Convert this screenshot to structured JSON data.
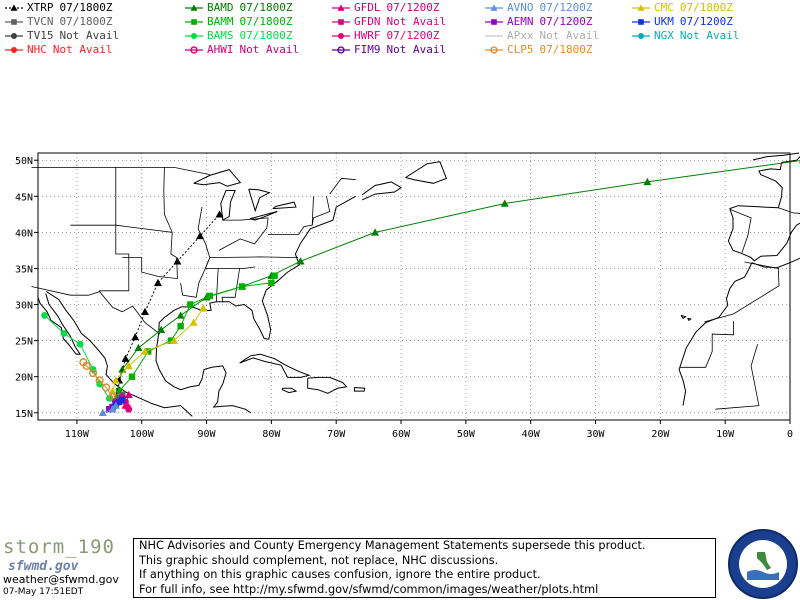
{
  "legend": [
    {
      "name": "XTRP",
      "status": "07/1800Z",
      "color": "#000000",
      "marker": "tri",
      "dash": true
    },
    {
      "name": "BAMD",
      "status": "07/1800Z",
      "color": "#008000",
      "marker": "tri"
    },
    {
      "name": "GFDL",
      "status": "07/1200Z",
      "color": "#cc0077",
      "marker": "tri"
    },
    {
      "name": "AVNO",
      "status": "07/1200Z",
      "color": "#5a8fe0",
      "marker": "tri"
    },
    {
      "name": "CMC",
      "status": "07/1800Z",
      "color": "#d4c000",
      "marker": "tri"
    },
    {
      "name": "TVCN",
      "status": "07/1800Z",
      "color": "#606060",
      "marker": "sq"
    },
    {
      "name": "BAMM",
      "status": "07/1800Z",
      "color": "#00b000",
      "marker": "sq"
    },
    {
      "name": "GFDN",
      "status": "Not Avail",
      "color": "#e0007a",
      "marker": "sq"
    },
    {
      "name": "AEMN",
      "status": "07/1200Z",
      "color": "#9000c0",
      "marker": "sq"
    },
    {
      "name": "UKM",
      "status": "07/1200Z",
      "color": "#1030e0",
      "marker": "sq"
    },
    {
      "name": "TV15",
      "status": "Not Avail",
      "color": "#404040",
      "marker": "dot"
    },
    {
      "name": "BAMS",
      "status": "07/1800Z",
      "color": "#00dd44",
      "marker": "dot"
    },
    {
      "name": "HWRF",
      "status": "07/1200Z",
      "color": "#e0007a",
      "marker": "dot"
    },
    {
      "name": "APxx",
      "status": "Not Avail",
      "color": "#c8c8c8",
      "marker": "none"
    },
    {
      "name": "NGX",
      "status": "Not Avail",
      "color": "#00b0b0",
      "marker": "dot"
    },
    {
      "name": "NHC",
      "status": "Not Avail",
      "color": "#ff2020",
      "marker": "dot"
    },
    {
      "name": "AHWI",
      "status": "Not Avail",
      "color": "#cc0077",
      "marker": "ring"
    },
    {
      "name": "FIM9",
      "status": "Not Avail",
      "color": "#6000a0",
      "marker": "ring"
    },
    {
      "name": "CLP5",
      "status": "07/1800Z",
      "color": "#e08a30",
      "marker": "ring"
    }
  ],
  "chart_data": {
    "type": "line",
    "title": "",
    "xlabel": "",
    "ylabel": "",
    "xlim": [
      -116,
      0
    ],
    "ylim": [
      14,
      51
    ],
    "x_ticks": [
      -110,
      -100,
      -90,
      -80,
      -70,
      -60,
      -50,
      -40,
      -30,
      -20,
      -10,
      0
    ],
    "x_tick_labels": [
      "110W",
      "100W",
      "90W",
      "80W",
      "70W",
      "60W",
      "50W",
      "40W",
      "30W",
      "20W",
      "10W",
      "0"
    ],
    "y_ticks": [
      15,
      20,
      25,
      30,
      35,
      40,
      45,
      50
    ],
    "y_tick_labels": [
      "15N",
      "20N",
      "25N",
      "30N",
      "35N",
      "40N",
      "45N",
      "50N"
    ],
    "grid": true,
    "series": [
      {
        "name": "BAMD",
        "color": "#008000",
        "marker": "tri",
        "x": [
          -104.0,
          -103.0,
          -100.5,
          -97.0,
          -94.0,
          -90.0,
          -84.5,
          -80.0,
          -75.5,
          -64.0,
          -44.0,
          -22.0,
          2.0
        ],
        "y": [
          17.0,
          21.0,
          24.0,
          26.5,
          28.5,
          31.0,
          32.5,
          34.0,
          36.0,
          40.0,
          44.0,
          47.0,
          50.0
        ]
      },
      {
        "name": "BAMM",
        "color": "#00b000",
        "marker": "sq",
        "x": [
          -104.0,
          -103.5,
          -101.5,
          -99.0,
          -95.5,
          -94.0,
          -92.5,
          -89.5,
          -84.5,
          -80.0,
          -79.5
        ],
        "y": [
          16.5,
          18.0,
          20.0,
          23.5,
          25.0,
          27.0,
          30.0,
          31.2,
          32.5,
          33.0,
          34.0
        ]
      },
      {
        "name": "BAMS",
        "color": "#00dd44",
        "marker": "dot",
        "x": [
          -104.0,
          -105.0,
          -106.5,
          -107.5,
          -109.5,
          -112.0,
          -115.0
        ],
        "y": [
          16.0,
          17.0,
          19.0,
          21.0,
          24.5,
          26.0,
          28.5
        ]
      },
      {
        "name": "XTRP",
        "color": "#000000",
        "marker": "tri",
        "x": [
          -104.0,
          -103.5,
          -102.5,
          -101.0,
          -99.5,
          -97.5,
          -94.5,
          -91.0,
          -88.0
        ],
        "y": [
          17.0,
          19.5,
          22.5,
          25.5,
          29.0,
          33.0,
          36.0,
          39.5,
          42.5
        ]
      },
      {
        "name": "CMC",
        "color": "#d4c000",
        "marker": "tri",
        "x": [
          -104.0,
          -104.5,
          -104.0,
          -102.0,
          -99.5,
          -95.0,
          -92.0,
          -90.5
        ],
        "y": [
          16.5,
          18.0,
          19.5,
          21.5,
          23.5,
          25.0,
          27.5,
          29.5
        ]
      },
      {
        "name": "CLP5",
        "color": "#e08a30",
        "marker": "ring",
        "x": [
          -104.0,
          -104.5,
          -105.5,
          -106.5,
          -107.5,
          -108.5,
          -109.0
        ],
        "y": [
          16.2,
          17.2,
          18.5,
          19.5,
          20.5,
          21.5,
          22.0
        ]
      },
      {
        "name": "TVCN",
        "color": "#606060",
        "marker": "sq",
        "x": [
          -104.0,
          -103.5,
          -103.0
        ],
        "y": [
          16.5,
          17.0,
          17.5
        ]
      },
      {
        "name": "GFDL",
        "color": "#cc0077",
        "marker": "tri",
        "x": [
          -104.0,
          -103.0,
          -102.0,
          -102.5
        ],
        "y": [
          16.5,
          17.0,
          17.5,
          16.0
        ]
      },
      {
        "name": "HWRF",
        "color": "#e0007a",
        "marker": "dot",
        "x": [
          -104.0,
          -103.0,
          -102.5,
          -102.2,
          -103.0,
          -102.0
        ],
        "y": [
          16.5,
          17.2,
          16.5,
          15.8,
          16.8,
          15.5
        ]
      },
      {
        "name": "AEMN",
        "color": "#9000c0",
        "marker": "sq",
        "x": [
          -104.0,
          -104.5,
          -105.0
        ],
        "y": [
          16.3,
          15.8,
          15.5
        ]
      },
      {
        "name": "UKM",
        "color": "#1030e0",
        "marker": "sq",
        "x": [
          -104.0,
          -103.5,
          -103.0
        ],
        "y": [
          16.2,
          16.5,
          16.8
        ]
      },
      {
        "name": "AVNO",
        "color": "#5a8fe0",
        "marker": "tri",
        "x": [
          -104.0,
          -104.5,
          -106.0
        ],
        "y": [
          16.0,
          15.5,
          15.0
        ]
      }
    ]
  },
  "footer": {
    "brand_storm": "storm_190",
    "brand_site": "sfwmd.gov",
    "email": "weather@sfwmd.gov",
    "date": "07-May 17:51EDT",
    "notice_lines": [
      "NHC Advisories and County Emergency Management Statements supersede this product.",
      "This graphic should complement, not replace, NHC discussions.",
      "If anything on this graphic causes confusion, ignore the entire product.",
      "For full info, see  http://my.sfwmd.gov/sfwmd/common/images/weather/plots.html"
    ],
    "seal_text": "SOUTH FLORIDA WATER MANAGEMENT DISTRICT"
  }
}
